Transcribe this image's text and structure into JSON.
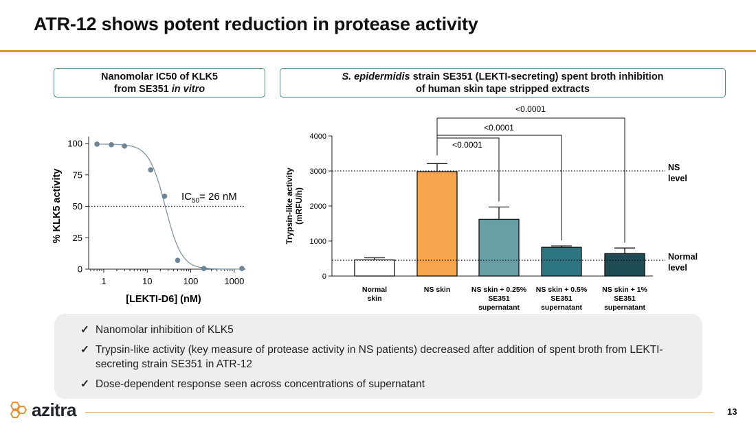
{
  "slide": {
    "title": "ATR-12 shows potent reduction in protease activity",
    "page_number": "13",
    "logo_text": "azitra"
  },
  "left_box": {
    "line1": "Nanomolar IC50 of KLK5",
    "line2_prefix": "from SE351 ",
    "line2_italic": "in vitro"
  },
  "right_box": {
    "italic": "S. epidermidis",
    "line1_rest": " strain SE351 (LEKTI-secreting) spent broth inhibition",
    "line2": "of human skin tape stripped extracts"
  },
  "bullets": [
    "Nanomolar inhibition of KLK5",
    "Trypsin-like activity (key measure of protease activity in NS patients) decreased after addition of spent broth from LEKTI-secreting strain SE351 in ATR-12",
    "Dose-dependent response seen across concentrations of supernatant"
  ],
  "colors": {
    "accent_orange": "#e8922e",
    "box_border": "#3f8a8f"
  },
  "chart_data": [
    {
      "type": "scatter",
      "title": "",
      "xlabel": "[LEKTI-D6] (nM)",
      "ylabel": "% KLK5 activity",
      "xscale": "log",
      "xlim": [
        0.45,
        1800
      ],
      "ylim": [
        0,
        100
      ],
      "x_ticks": [
        1,
        10,
        100,
        1000
      ],
      "x_tick_labels": [
        "1",
        "10",
        "100",
        "1000"
      ],
      "y_ticks": [
        0,
        25,
        50,
        75,
        100
      ],
      "points": {
        "x": [
          0.7,
          1.5,
          3,
          12,
          25,
          50,
          200,
          1500
        ],
        "y": [
          99.5,
          99,
          98,
          79,
          58,
          7,
          0.5,
          0.5
        ]
      },
      "fit": {
        "model": "sigmoidal",
        "ic50": 26,
        "hill": 2.3,
        "top": 99.5,
        "bottom": 0
      },
      "reference_line": {
        "y": 50,
        "style": "dotted"
      },
      "annotation": {
        "prefix": "IC",
        "subscript": "50",
        "suffix": "= 26 nM"
      }
    },
    {
      "type": "bar",
      "ylabel_line1": "Trypsin-like activity",
      "ylabel_line2": "(mRFU/h)",
      "ylim": [
        0,
        4000
      ],
      "y_ticks": [
        0,
        1000,
        2000,
        3000,
        4000
      ],
      "categories": [
        [
          "Normal",
          "skin"
        ],
        [
          "NS skin"
        ],
        [
          "NS skin + 0.25%",
          "SE351",
          "supernatant"
        ],
        [
          "NS skin + 0.5%",
          "SE351",
          "supernatant"
        ],
        [
          "NS skin + 1%",
          "SE351",
          "supernatant"
        ]
      ],
      "values": [
        460,
        2980,
        1620,
        820,
        640
      ],
      "errors": [
        60,
        230,
        350,
        40,
        160
      ],
      "bar_colors": [
        "#ffffff",
        "#f7a54d",
        "#67a0a4",
        "#2d7580",
        "#1e4b54"
      ],
      "reference_lines": [
        {
          "y": 3000,
          "label_line1": "NS",
          "label_line2": "level"
        },
        {
          "y": 450,
          "label_line1": "Normal",
          "label_line2": "level"
        }
      ],
      "comparisons": [
        {
          "from": 1,
          "to": 2,
          "label": "<0.0001"
        },
        {
          "from": 1,
          "to": 3,
          "label": "<0.0001"
        },
        {
          "from": 1,
          "to": 4,
          "label": "<0.0001"
        }
      ]
    }
  ]
}
